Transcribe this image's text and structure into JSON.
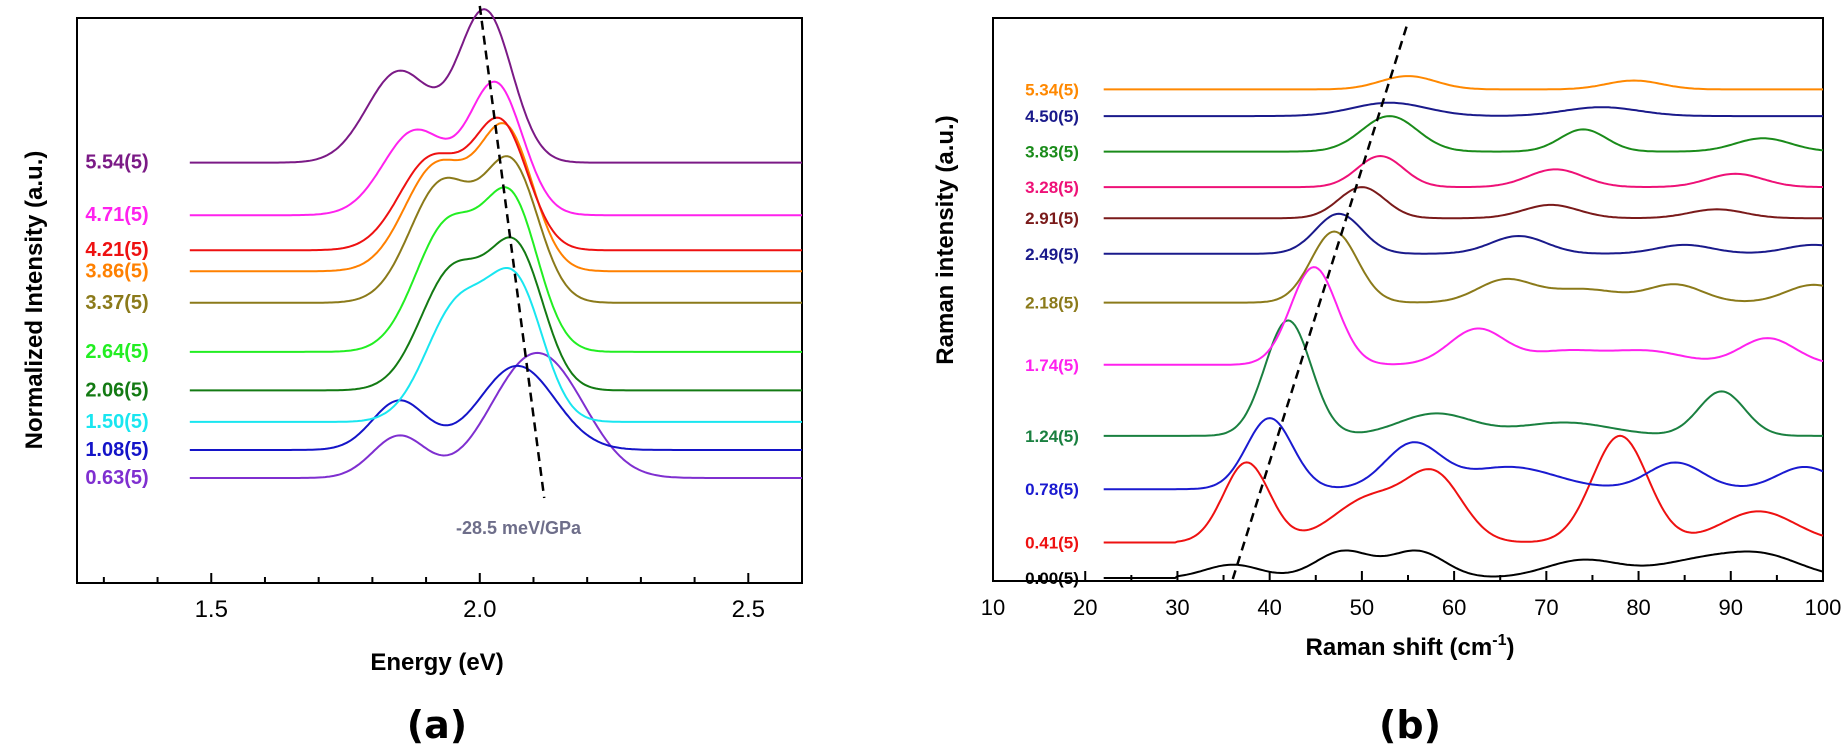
{
  "chart_data": [
    {
      "panel": "(a)",
      "type": "line",
      "xlabel": "Energy (eV)",
      "ylabel": "Normalized Intensity (a.u.)",
      "xlim": [
        1.25,
        2.6
      ],
      "xticks": [
        "1.5",
        "2.0",
        "2.5"
      ],
      "annotation": "-28.5 meV/GPa",
      "trend_line": {
        "x": [
          2.0,
          2.12
        ],
        "from_series": "5.54(5)",
        "to_series": "0.63(5)"
      },
      "series": [
        {
          "name": "0.63(5)",
          "color": "#7f2fd0",
          "baseline": 0.0,
          "peaks": [
            [
              1.85,
              0.05,
              0.12
            ],
            [
              2.07,
              0.07,
              0.22
            ],
            [
              2.15,
              0.07,
              0.2
            ]
          ]
        },
        {
          "name": "1.08(5)",
          "color": "#1414c8",
          "baseline": 0.08,
          "peaks": [
            [
              1.85,
              0.05,
              0.14
            ],
            [
              2.07,
              0.07,
              0.24
            ]
          ]
        },
        {
          "name": "1.50(5)",
          "color": "#19e6f0",
          "baseline": 0.16,
          "peaks": [
            [
              1.96,
              0.06,
              0.33
            ],
            [
              2.07,
              0.05,
              0.36
            ]
          ]
        },
        {
          "name": "2.06(5)",
          "color": "#137a13",
          "baseline": 0.25,
          "peaks": [
            [
              1.95,
              0.06,
              0.34
            ],
            [
              2.07,
              0.05,
              0.38
            ]
          ]
        },
        {
          "name": "2.64(5)",
          "color": "#22ee22",
          "baseline": 0.36,
          "peaks": [
            [
              1.94,
              0.06,
              0.36
            ],
            [
              2.06,
              0.05,
              0.41
            ]
          ]
        },
        {
          "name": "3.37(5)",
          "color": "#8b7a1a",
          "baseline": 0.5,
          "peaks": [
            [
              1.93,
              0.06,
              0.34
            ],
            [
              2.06,
              0.05,
              0.38
            ]
          ]
        },
        {
          "name": "3.86(5)",
          "color": "#ff8000",
          "baseline": 0.59,
          "peaks": [
            [
              1.92,
              0.06,
              0.3
            ],
            [
              2.05,
              0.05,
              0.39
            ]
          ]
        },
        {
          "name": "4.21(5)",
          "color": "#ee1111",
          "baseline": 0.65,
          "peaks": [
            [
              1.91,
              0.06,
              0.26
            ],
            [
              2.04,
              0.05,
              0.35
            ]
          ]
        },
        {
          "name": "4.71(5)",
          "color": "#ff22ee",
          "baseline": 0.75,
          "peaks": [
            [
              1.88,
              0.06,
              0.24
            ],
            [
              2.03,
              0.05,
              0.37
            ]
          ]
        },
        {
          "name": "5.54(5)",
          "color": "#7b1a86",
          "baseline": 0.9,
          "peaks": [
            [
              1.85,
              0.06,
              0.26
            ],
            [
              2.01,
              0.05,
              0.43
            ]
          ]
        }
      ]
    },
    {
      "panel": "(b)",
      "type": "line",
      "xlabel": "Raman shift (cm",
      "xlabel_sup": "-1",
      "xlabel_end": ")",
      "ylabel": "Raman intensity (a.u.)",
      "xlim": [
        10,
        100
      ],
      "xticks": [
        "10",
        "20",
        "30",
        "40",
        "50",
        "60",
        "70",
        "80",
        "90",
        "100"
      ],
      "trend_line": {
        "x": [
          36,
          55
        ]
      },
      "series": [
        {
          "name": "0.00(5)",
          "color": "#000000",
          "baseline": 0.0,
          "peaks": [
            [
              36,
              3,
              0.03
            ],
            [
              48,
              3,
              0.06
            ],
            [
              56,
              3,
              0.06
            ],
            [
              74,
              4,
              0.04
            ],
            [
              87,
              5,
              0.04
            ],
            [
              94,
              4,
              0.04
            ]
          ]
        },
        {
          "name": "0.41(5)",
          "color": "#ee1111",
          "baseline": 0.08,
          "peaks": [
            [
              37.5,
              2.5,
              0.18
            ],
            [
              51,
              4,
              0.1
            ],
            [
              58,
              3,
              0.14
            ],
            [
              78,
              3,
              0.24
            ],
            [
              93,
              4,
              0.07
            ]
          ]
        },
        {
          "name": "0.78(5)",
          "color": "#1a1ad0",
          "baseline": 0.2,
          "peaks": [
            [
              40,
              2.5,
              0.16
            ],
            [
              55.5,
              3,
              0.1
            ],
            [
              66,
              5,
              0.05
            ],
            [
              84,
              3,
              0.06
            ],
            [
              98,
              3,
              0.05
            ]
          ]
        },
        {
          "name": "1.24(5)",
          "color": "#1a8040",
          "baseline": 0.32,
          "peaks": [
            [
              42,
              2.5,
              0.26
            ],
            [
              58,
              4,
              0.05
            ],
            [
              72,
              5,
              0.03
            ],
            [
              89,
              2.5,
              0.1
            ]
          ]
        },
        {
          "name": "1.74(5)",
          "color": "#ff22ee",
          "baseline": 0.48,
          "peaks": [
            [
              44.8,
              2.5,
              0.22
            ],
            [
              62.5,
              3,
              0.08
            ],
            [
              72,
              4,
              0.03
            ],
            [
              81,
              4,
              0.03
            ],
            [
              94,
              3,
              0.06
            ]
          ]
        },
        {
          "name": "2.18(5)",
          "color": "#8b7a1a",
          "baseline": 0.62,
          "peaks": [
            [
              47,
              2.5,
              0.16
            ],
            [
              65.5,
              3,
              0.05
            ],
            [
              74,
              4,
              0.03
            ],
            [
              84,
              3,
              0.04
            ],
            [
              99,
              3,
              0.04
            ]
          ]
        },
        {
          "name": "2.49(5)",
          "color": "#1a1a8b",
          "baseline": 0.73,
          "peaks": [
            [
              47.5,
              2.5,
              0.09
            ],
            [
              67,
              3,
              0.04
            ],
            [
              85,
              3,
              0.02
            ],
            [
              99,
              3,
              0.02
            ]
          ]
        },
        {
          "name": "2.91(5)",
          "color": "#7a1a1a",
          "baseline": 0.81,
          "peaks": [
            [
              50,
              2.5,
              0.07
            ],
            [
              70.5,
              3,
              0.03
            ],
            [
              88.5,
              3,
              0.02
            ]
          ]
        },
        {
          "name": "3.28(5)",
          "color": "#ee1177",
          "baseline": 0.88,
          "peaks": [
            [
              52,
              2.5,
              0.07
            ],
            [
              71,
              3,
              0.04
            ],
            [
              90.5,
              3,
              0.03
            ]
          ]
        },
        {
          "name": "3.83(5)",
          "color": "#1a8b1a",
          "baseline": 0.96,
          "peaks": [
            [
              53,
              3,
              0.08
            ],
            [
              74,
              2.5,
              0.05
            ],
            [
              93.5,
              3,
              0.03
            ]
          ]
        },
        {
          "name": "4.50(5)",
          "color": "#1a1a8b",
          "baseline": 1.04,
          "peaks": [
            [
              53,
              4,
              0.03
            ],
            [
              76,
              4,
              0.02
            ]
          ]
        },
        {
          "name": "5.34(5)",
          "color": "#ff8800",
          "baseline": 1.1,
          "peaks": [
            [
              55,
              3,
              0.03
            ],
            [
              79.5,
              3,
              0.02
            ]
          ]
        }
      ]
    }
  ]
}
